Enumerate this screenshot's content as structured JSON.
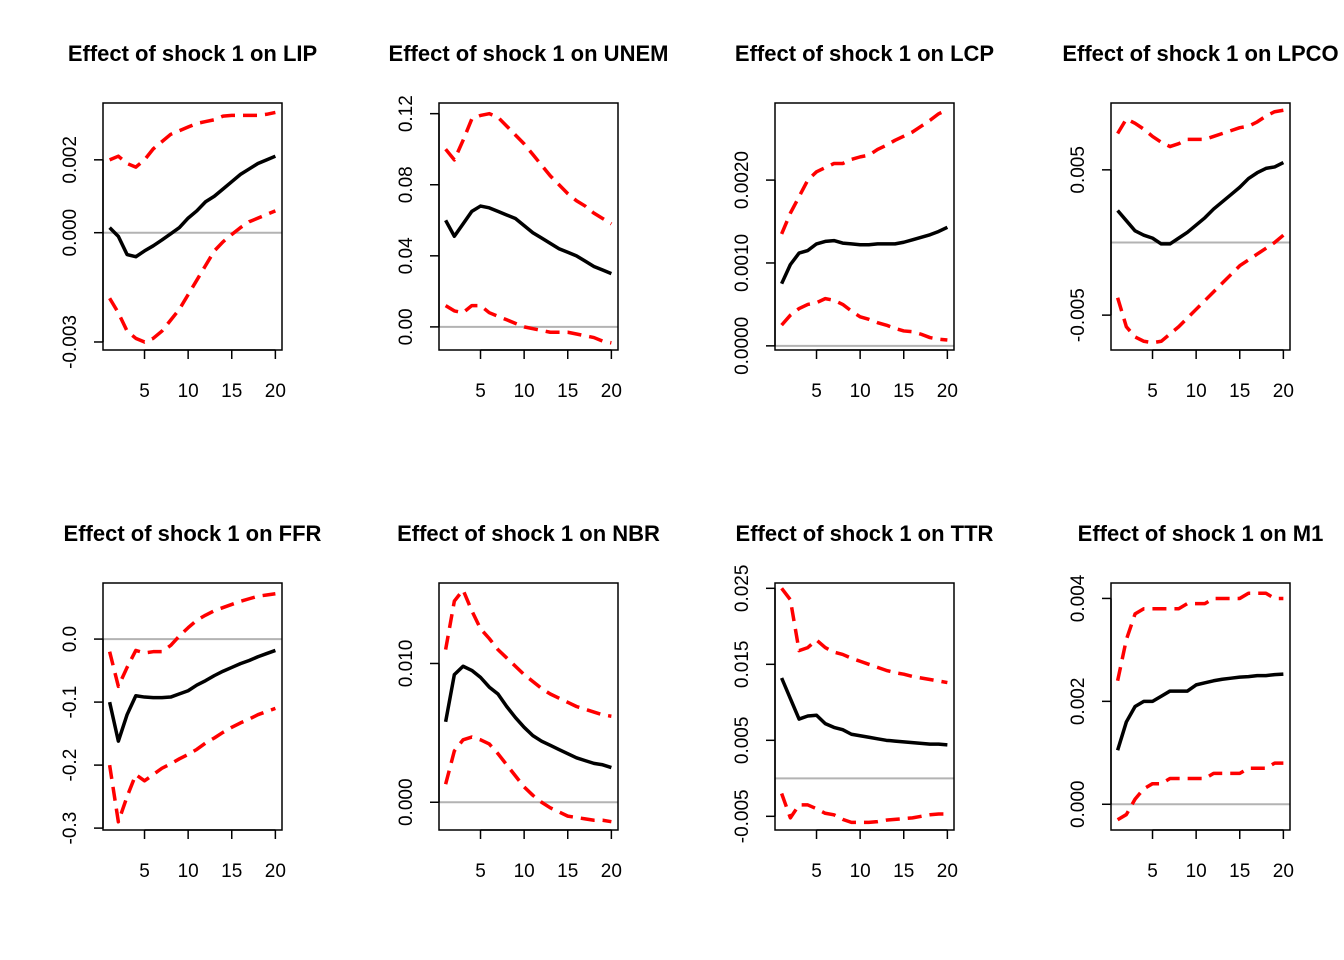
{
  "chart_data": [
    {
      "type": "line",
      "title": "Effect of shock 1 on LIP",
      "x": [
        1,
        2,
        3,
        4,
        5,
        6,
        7,
        8,
        9,
        10,
        11,
        12,
        13,
        14,
        15,
        16,
        17,
        18,
        19,
        20
      ],
      "xlim": [
        0.24,
        20.76
      ],
      "xticks": [
        5,
        10,
        15,
        20
      ],
      "ylim": [
        -0.00322,
        0.00356
      ],
      "yticks": [
        -0.003,
        {
          "value": 0,
          "label": "0.000"
        },
        0.002
      ],
      "hline": 0,
      "hline_color": "#b3b3b3",
      "series": [
        {
          "color": "#000000",
          "dashed": false,
          "values": [
            0.00014,
            -0.0001,
            -0.0006,
            -0.00066,
            -0.0005,
            -0.00036,
            -0.0002,
            -3e-05,
            0.00014,
            0.0004,
            0.0006,
            0.00085,
            0.001,
            0.0012,
            0.0014,
            0.0016,
            0.00175,
            0.0019,
            0.002,
            0.0021
          ]
        },
        {
          "color": "#ff0000",
          "dashed": true,
          "values": [
            0.002,
            0.0021,
            0.0019,
            0.0018,
            0.002,
            0.0023,
            0.0025,
            0.0027,
            0.0028,
            0.0029,
            0.003,
            0.00305,
            0.0031,
            0.0032,
            0.00322,
            0.00322,
            0.00322,
            0.00322,
            0.00325,
            0.0033
          ]
        },
        {
          "color": "#ff0000",
          "dashed": true,
          "values": [
            -0.0018,
            -0.0022,
            -0.0027,
            -0.0029,
            -0.003,
            -0.0029,
            -0.0027,
            -0.0024,
            -0.0021,
            -0.0017,
            -0.0013,
            -0.0009,
            -0.0005,
            -0.00025,
            -5e-05,
            0.00014,
            0.0003,
            0.0004,
            0.0005,
            0.0006
          ]
        }
      ]
    },
    {
      "type": "line",
      "title": "Effect of shock 1 on UNEM",
      "x": [
        1,
        2,
        3,
        4,
        5,
        6,
        7,
        8,
        9,
        10,
        11,
        12,
        13,
        14,
        15,
        16,
        17,
        18,
        19,
        20
      ],
      "xlim": [
        0.24,
        20.76
      ],
      "xticks": [
        5,
        10,
        15,
        20
      ],
      "ylim": [
        -0.013,
        0.126
      ],
      "yticks": [
        {
          "value": 0,
          "label": "0.00"
        },
        0.04,
        0.08,
        0.12
      ],
      "hline": 0,
      "hline_color": "#b3b3b3",
      "series": [
        {
          "color": "#000000",
          "dashed": false,
          "values": [
            0.06,
            0.051,
            0.058,
            0.065,
            0.068,
            0.067,
            0.065,
            0.063,
            0.061,
            0.057,
            0.053,
            0.05,
            0.047,
            0.044,
            0.042,
            0.04,
            0.037,
            0.034,
            0.032,
            0.03
          ]
        },
        {
          "color": "#ff0000",
          "dashed": true,
          "values": [
            0.1,
            0.094,
            0.105,
            0.117,
            0.119,
            0.12,
            0.118,
            0.113,
            0.108,
            0.103,
            0.097,
            0.091,
            0.085,
            0.08,
            0.075,
            0.071,
            0.068,
            0.064,
            0.061,
            0.058
          ]
        },
        {
          "color": "#ff0000",
          "dashed": true,
          "values": [
            0.012,
            0.009,
            0.008,
            0.012,
            0.012,
            0.008,
            0.006,
            0.004,
            0.002,
            0,
            -0.001,
            -0.002,
            -0.003,
            -0.003,
            -0.003,
            -0.004,
            -0.005,
            -0.006,
            -0.008,
            -0.009
          ]
        }
      ]
    },
    {
      "type": "line",
      "title": "Effect of shock 1 on LCP",
      "x": [
        1,
        2,
        3,
        4,
        5,
        6,
        7,
        8,
        9,
        10,
        11,
        12,
        13,
        14,
        15,
        16,
        17,
        18,
        19,
        20
      ],
      "xlim": [
        0.24,
        20.76
      ],
      "xticks": [
        5,
        10,
        15,
        20
      ],
      "ylim": [
        -5e-05,
        0.00293
      ],
      "yticks": [
        {
          "value": 0,
          "label": "0.0000"
        },
        {
          "value": 0.001,
          "label": "0.0010"
        },
        {
          "value": 0.002,
          "label": "0.0020"
        }
      ],
      "hline": 0,
      "hline_color": "#b3b3b3",
      "series": [
        {
          "color": "#000000",
          "dashed": false,
          "values": [
            0.00075,
            0.00098,
            0.00112,
            0.00115,
            0.00123,
            0.00126,
            0.00127,
            0.00124,
            0.00123,
            0.00122,
            0.00122,
            0.00123,
            0.00123,
            0.00123,
            0.00125,
            0.00128,
            0.00131,
            0.00134,
            0.00138,
            0.00143
          ]
        },
        {
          "color": "#ff0000",
          "dashed": true,
          "values": [
            0.00135,
            0.0016,
            0.0018,
            0.002,
            0.0021,
            0.00215,
            0.0022,
            0.0022,
            0.00225,
            0.00228,
            0.0023,
            0.00237,
            0.00242,
            0.00248,
            0.00253,
            0.00258,
            0.00265,
            0.00272,
            0.0028,
            0.00285
          ]
        },
        {
          "color": "#ff0000",
          "dashed": true,
          "values": [
            0.00025,
            0.00037,
            0.00045,
            0.0005,
            0.00052,
            0.00057,
            0.00055,
            0.0005,
            0.00042,
            0.00035,
            0.00032,
            0.00028,
            0.00025,
            0.00021,
            0.00018,
            0.00017,
            0.00014,
            0.0001,
            8e-05,
            7e-05
          ]
        }
      ]
    },
    {
      "type": "line",
      "title": "Effect of shock 1 on LPCO",
      "x": [
        1,
        2,
        3,
        4,
        5,
        6,
        7,
        8,
        9,
        10,
        11,
        12,
        13,
        14,
        15,
        16,
        17,
        18,
        19,
        20
      ],
      "xlim": [
        0.24,
        20.76
      ],
      "xticks": [
        5,
        10,
        15,
        20
      ],
      "ylim": [
        -0.0074,
        0.0096
      ],
      "yticks": [
        -0.005,
        0.005
      ],
      "hline": 0,
      "hline_color": "#b3b3b3",
      "series": [
        {
          "color": "#000000",
          "dashed": false,
          "values": [
            0.0022,
            0.0015,
            0.0008,
            0.0005,
            0.0003,
            -0.0001,
            -0.0001,
            0.0003,
            0.0007,
            0.0012,
            0.0017,
            0.0023,
            0.0028,
            0.0033,
            0.0038,
            0.0044,
            0.0048,
            0.0051,
            0.0052,
            0.0055
          ]
        },
        {
          "color": "#ff0000",
          "dashed": true,
          "values": [
            0.0075,
            0.0085,
            0.0082,
            0.0078,
            0.0073,
            0.0069,
            0.0066,
            0.0068,
            0.0071,
            0.0071,
            0.0071,
            0.0073,
            0.0075,
            0.0077,
            0.0079,
            0.008,
            0.0083,
            0.0087,
            0.009,
            0.0091
          ]
        },
        {
          "color": "#ff0000",
          "dashed": true,
          "values": [
            -0.0038,
            -0.0058,
            -0.0065,
            -0.0068,
            -0.0069,
            -0.0068,
            -0.0063,
            -0.0058,
            -0.0052,
            -0.0046,
            -0.004,
            -0.0034,
            -0.0028,
            -0.0022,
            -0.0016,
            -0.0012,
            -0.0008,
            -0.0004,
            0,
            0.0005
          ]
        }
      ]
    },
    {
      "type": "line",
      "title": "Effect of shock 1 on FFR",
      "x": [
        1,
        2,
        3,
        4,
        5,
        6,
        7,
        8,
        9,
        10,
        11,
        12,
        13,
        14,
        15,
        16,
        17,
        18,
        19,
        20
      ],
      "xlim": [
        0.24,
        20.76
      ],
      "xticks": [
        5,
        10,
        15,
        20
      ],
      "ylim": [
        -0.303,
        0.089
      ],
      "yticks": [
        -0.3,
        -0.2,
        -0.1,
        {
          "value": 0,
          "label": "0.0"
        }
      ],
      "hline": 0,
      "hline_color": "#b3b3b3",
      "series": [
        {
          "color": "#000000",
          "dashed": false,
          "values": [
            -0.1,
            -0.162,
            -0.12,
            -0.09,
            -0.092,
            -0.093,
            -0.093,
            -0.092,
            -0.087,
            -0.082,
            -0.073,
            -0.066,
            -0.058,
            -0.051,
            -0.045,
            -0.039,
            -0.034,
            -0.028,
            -0.023,
            -0.018
          ]
        },
        {
          "color": "#ff0000",
          "dashed": true,
          "values": [
            -0.02,
            -0.075,
            -0.045,
            -0.018,
            -0.022,
            -0.02,
            -0.02,
            -0.01,
            0.005,
            0.018,
            0.03,
            0.038,
            0.045,
            0.05,
            0.055,
            0.06,
            0.064,
            0.068,
            0.07,
            0.072
          ]
        },
        {
          "color": "#ff0000",
          "dashed": true,
          "values": [
            -0.2,
            -0.29,
            -0.25,
            -0.215,
            -0.225,
            -0.215,
            -0.205,
            -0.198,
            -0.19,
            -0.183,
            -0.175,
            -0.165,
            -0.157,
            -0.148,
            -0.14,
            -0.133,
            -0.127,
            -0.12,
            -0.115,
            -0.11
          ]
        }
      ]
    },
    {
      "type": "line",
      "title": "Effect of shock 1 on NBR",
      "x": [
        1,
        2,
        3,
        4,
        5,
        6,
        7,
        8,
        9,
        10,
        11,
        12,
        13,
        14,
        15,
        16,
        17,
        18,
        19,
        20
      ],
      "xlim": [
        0.24,
        20.76
      ],
      "xticks": [
        5,
        10,
        15,
        20
      ],
      "ylim": [
        -0.002,
        0.0158
      ],
      "yticks": [
        {
          "value": 0,
          "label": "0.000"
        },
        {
          "value": 0.01,
          "label": "0.010"
        }
      ],
      "hline": 0,
      "hline_color": "#b3b3b3",
      "series": [
        {
          "color": "#000000",
          "dashed": false,
          "values": [
            0.0058,
            0.0092,
            0.0098,
            0.0095,
            0.009,
            0.0083,
            0.0078,
            0.0069,
            0.0061,
            0.0054,
            0.0048,
            0.0044,
            0.0041,
            0.0038,
            0.0035,
            0.0032,
            0.003,
            0.0028,
            0.0027,
            0.0025
          ]
        },
        {
          "color": "#ff0000",
          "dashed": true,
          "values": [
            0.011,
            0.0145,
            0.0153,
            0.0138,
            0.0125,
            0.0118,
            0.011,
            0.0104,
            0.0098,
            0.0092,
            0.0087,
            0.0082,
            0.0078,
            0.0075,
            0.0072,
            0.0069,
            0.0067,
            0.0065,
            0.0063,
            0.0062
          ]
        },
        {
          "color": "#ff0000",
          "dashed": true,
          "values": [
            0.0013,
            0.0037,
            0.0045,
            0.0047,
            0.0045,
            0.0042,
            0.0035,
            0.0027,
            0.0019,
            0.0011,
            0.0005,
            0,
            -0.0004,
            -0.0007,
            -0.001,
            -0.0011,
            -0.0012,
            -0.0013,
            -0.0013,
            -0.0014
          ]
        }
      ]
    },
    {
      "type": "line",
      "title": "Effect of shock 1 on TTR",
      "x": [
        1,
        2,
        3,
        4,
        5,
        6,
        7,
        8,
        9,
        10,
        11,
        12,
        13,
        14,
        15,
        16,
        17,
        18,
        19,
        20
      ],
      "xlim": [
        0.24,
        20.76
      ],
      "xticks": [
        5,
        10,
        15,
        20
      ],
      "ylim": [
        -0.0068,
        0.0257
      ],
      "yticks": [
        -0.005,
        0.005,
        0.015,
        0.025
      ],
      "hline": 0,
      "hline_color": "#b3b3b3",
      "series": [
        {
          "color": "#000000",
          "dashed": false,
          "values": [
            0.0132,
            0.0105,
            0.0078,
            0.0082,
            0.0083,
            0.0072,
            0.0067,
            0.0064,
            0.0058,
            0.0056,
            0.0054,
            0.0052,
            0.005,
            0.0049,
            0.0048,
            0.0047,
            0.0046,
            0.0045,
            0.0045,
            0.0044
          ]
        },
        {
          "color": "#ff0000",
          "dashed": true,
          "values": [
            0.025,
            0.0235,
            0.0168,
            0.0172,
            0.0182,
            0.0172,
            0.0166,
            0.0163,
            0.0158,
            0.0154,
            0.015,
            0.0146,
            0.0142,
            0.0139,
            0.0137,
            0.0134,
            0.0132,
            0.013,
            0.0128,
            0.0126
          ]
        },
        {
          "color": "#ff0000",
          "dashed": true,
          "values": [
            -0.002,
            -0.0052,
            -0.0035,
            -0.0035,
            -0.004,
            -0.0046,
            -0.0048,
            -0.0054,
            -0.0058,
            -0.0058,
            -0.0058,
            -0.0057,
            -0.0055,
            -0.0054,
            -0.0053,
            -0.0052,
            -0.005,
            -0.0048,
            -0.0047,
            -0.0047
          ]
        }
      ]
    },
    {
      "type": "line",
      "title": "Effect of shock 1 on M1",
      "x": [
        1,
        2,
        3,
        4,
        5,
        6,
        7,
        8,
        9,
        10,
        11,
        12,
        13,
        14,
        15,
        16,
        17,
        18,
        19,
        20
      ],
      "xlim": [
        0.24,
        20.76
      ],
      "xticks": [
        5,
        10,
        15,
        20
      ],
      "ylim": [
        -0.0005,
        0.0043
      ],
      "yticks": [
        {
          "value": 0,
          "label": "0.000"
        },
        0.002,
        0.004
      ],
      "hline": 0,
      "hline_color": "#b3b3b3",
      "series": [
        {
          "color": "#000000",
          "dashed": false,
          "values": [
            0.00105,
            0.0016,
            0.0019,
            0.002,
            0.002,
            0.0021,
            0.0022,
            0.0022,
            0.0022,
            0.00232,
            0.00236,
            0.0024,
            0.00243,
            0.00245,
            0.00247,
            0.00248,
            0.0025,
            0.0025,
            0.00252,
            0.00253
          ]
        },
        {
          "color": "#ff0000",
          "dashed": true,
          "values": [
            0.0024,
            0.0032,
            0.0037,
            0.0038,
            0.0038,
            0.0038,
            0.0038,
            0.0038,
            0.0039,
            0.0039,
            0.0039,
            0.004,
            0.004,
            0.004,
            0.004,
            0.0041,
            0.0041,
            0.0041,
            0.004,
            0.004
          ]
        },
        {
          "color": "#ff0000",
          "dashed": true,
          "values": [
            -0.0003,
            -0.0002,
            0.0001,
            0.0003,
            0.0004,
            0.0004,
            0.0005,
            0.0005,
            0.0005,
            0.0005,
            0.0005,
            0.0006,
            0.0006,
            0.0006,
            0.0006,
            0.0007,
            0.0007,
            0.0007,
            0.0008,
            0.0008
          ]
        }
      ]
    }
  ]
}
